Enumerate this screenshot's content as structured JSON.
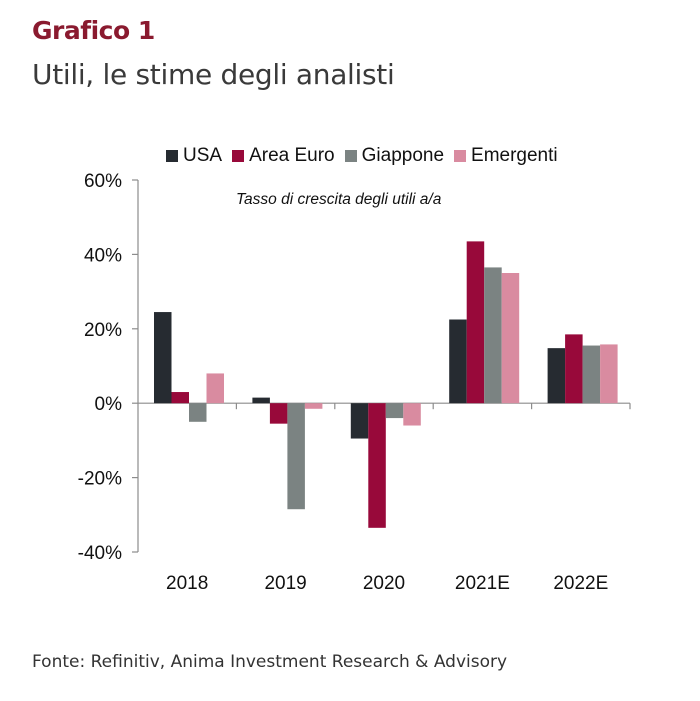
{
  "header": {
    "title": "Grafico 1",
    "subtitle": "Utili, le stime degli analisti"
  },
  "source": "Fonte: Refinitiv, Anima Investment Research & Advisory",
  "chart_data": {
    "type": "bar",
    "annotation": "Tasso di crescita degli utili a/a",
    "categories": [
      "2018",
      "2019",
      "2020",
      "2021E",
      "2022E"
    ],
    "series": [
      {
        "name": "USA",
        "color": "#262b31",
        "values": [
          24.5,
          1.5,
          -9.5,
          22.5,
          14.8
        ]
      },
      {
        "name": "Area Euro",
        "color": "#98093a",
        "values": [
          3.0,
          -5.5,
          -33.5,
          43.5,
          18.5
        ]
      },
      {
        "name": "Giappone",
        "color": "#7b8382",
        "values": [
          -5.0,
          -28.5,
          -4.0,
          36.5,
          15.5
        ]
      },
      {
        "name": "Emergenti",
        "color": "#d98ba0",
        "values": [
          8.0,
          -1.5,
          -6.0,
          35.0,
          15.8
        ]
      }
    ],
    "yticks": [
      "60%",
      "40%",
      "20%",
      "0%",
      "-20%",
      "-40%"
    ],
    "ytick_values": [
      60,
      40,
      20,
      0,
      -20,
      -40
    ],
    "ylim": [
      -40,
      60
    ],
    "grid": false,
    "legend_position": "top"
  }
}
